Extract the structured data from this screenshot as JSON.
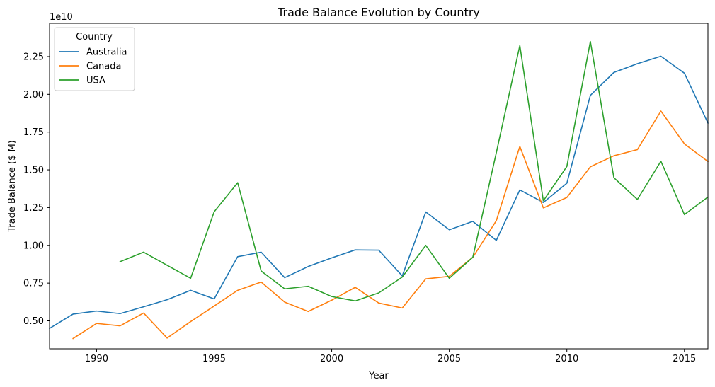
{
  "chart_data": {
    "type": "line",
    "title": "Trade Balance Evolution by Country",
    "xlabel": "Year",
    "ylabel": "Trade Balance ($ M)",
    "y_offset_label": "1e10",
    "xlim": [
      1988,
      2016
    ],
    "ylim": [
      0.315,
      2.47
    ],
    "x_ticks": [
      1990,
      1995,
      2000,
      2005,
      2010,
      2015
    ],
    "y_ticks": [
      0.5,
      0.75,
      1.0,
      1.25,
      1.5,
      1.75,
      2.0,
      2.25
    ],
    "y_tick_labels": [
      "0.50",
      "0.75",
      "1.00",
      "1.25",
      "1.50",
      "1.75",
      "2.00",
      "2.25"
    ],
    "grid": false,
    "legend": {
      "title": "Country",
      "position": "top-left"
    },
    "series": [
      {
        "name": "Australia",
        "color": "#1f77b4",
        "x": [
          1988,
          1989,
          1990,
          1991,
          1992,
          1993,
          1994,
          1995,
          1996,
          1997,
          1998,
          1999,
          2000,
          2001,
          2002,
          2003,
          2004,
          2005,
          2006,
          2007,
          2008,
          2009,
          2010,
          2011,
          2012,
          2013,
          2014,
          2015,
          2016
        ],
        "y": [
          0.45,
          0.545,
          0.565,
          0.548,
          0.593,
          0.64,
          0.702,
          0.645,
          0.925,
          0.955,
          0.786,
          0.86,
          0.917,
          0.97,
          0.968,
          0.798,
          1.221,
          1.103,
          1.159,
          1.033,
          1.367,
          1.284,
          1.411,
          1.993,
          2.145,
          2.203,
          2.252,
          2.14,
          1.81
        ]
      },
      {
        "name": "Canada",
        "color": "#ff7f0e",
        "x": [
          1989,
          1990,
          1991,
          1992,
          1993,
          1994,
          1995,
          1996,
          1997,
          1998,
          1999,
          2000,
          2001,
          2002,
          2003,
          2004,
          2005,
          2006,
          2007,
          2008,
          2009,
          2010,
          2011,
          2012,
          2013,
          2014,
          2015,
          2016
        ],
        "y": [
          0.383,
          0.483,
          0.467,
          0.552,
          0.386,
          0.495,
          0.598,
          0.702,
          0.757,
          0.624,
          0.562,
          0.637,
          0.722,
          0.618,
          0.585,
          0.778,
          0.795,
          0.921,
          1.163,
          1.655,
          1.248,
          1.317,
          1.52,
          1.593,
          1.634,
          1.889,
          1.672,
          1.555
        ]
      },
      {
        "name": "USA",
        "color": "#2ca02c",
        "x": [
          1991,
          1992,
          1993,
          1994,
          1995,
          1996,
          1997,
          1998,
          1999,
          2000,
          2001,
          2002,
          2003,
          2004,
          2005,
          2006,
          2007,
          2008,
          2009,
          2010,
          2011,
          2012,
          2013,
          2014,
          2015,
          2016
        ],
        "y": [
          0.892,
          0.955,
          0.868,
          0.782,
          1.222,
          1.415,
          0.83,
          0.712,
          0.729,
          0.661,
          0.632,
          0.685,
          0.79,
          1.0,
          0.782,
          0.921,
          1.613,
          2.323,
          1.295,
          1.522,
          2.35,
          1.448,
          1.304,
          1.557,
          1.204,
          1.32
        ]
      }
    ]
  }
}
